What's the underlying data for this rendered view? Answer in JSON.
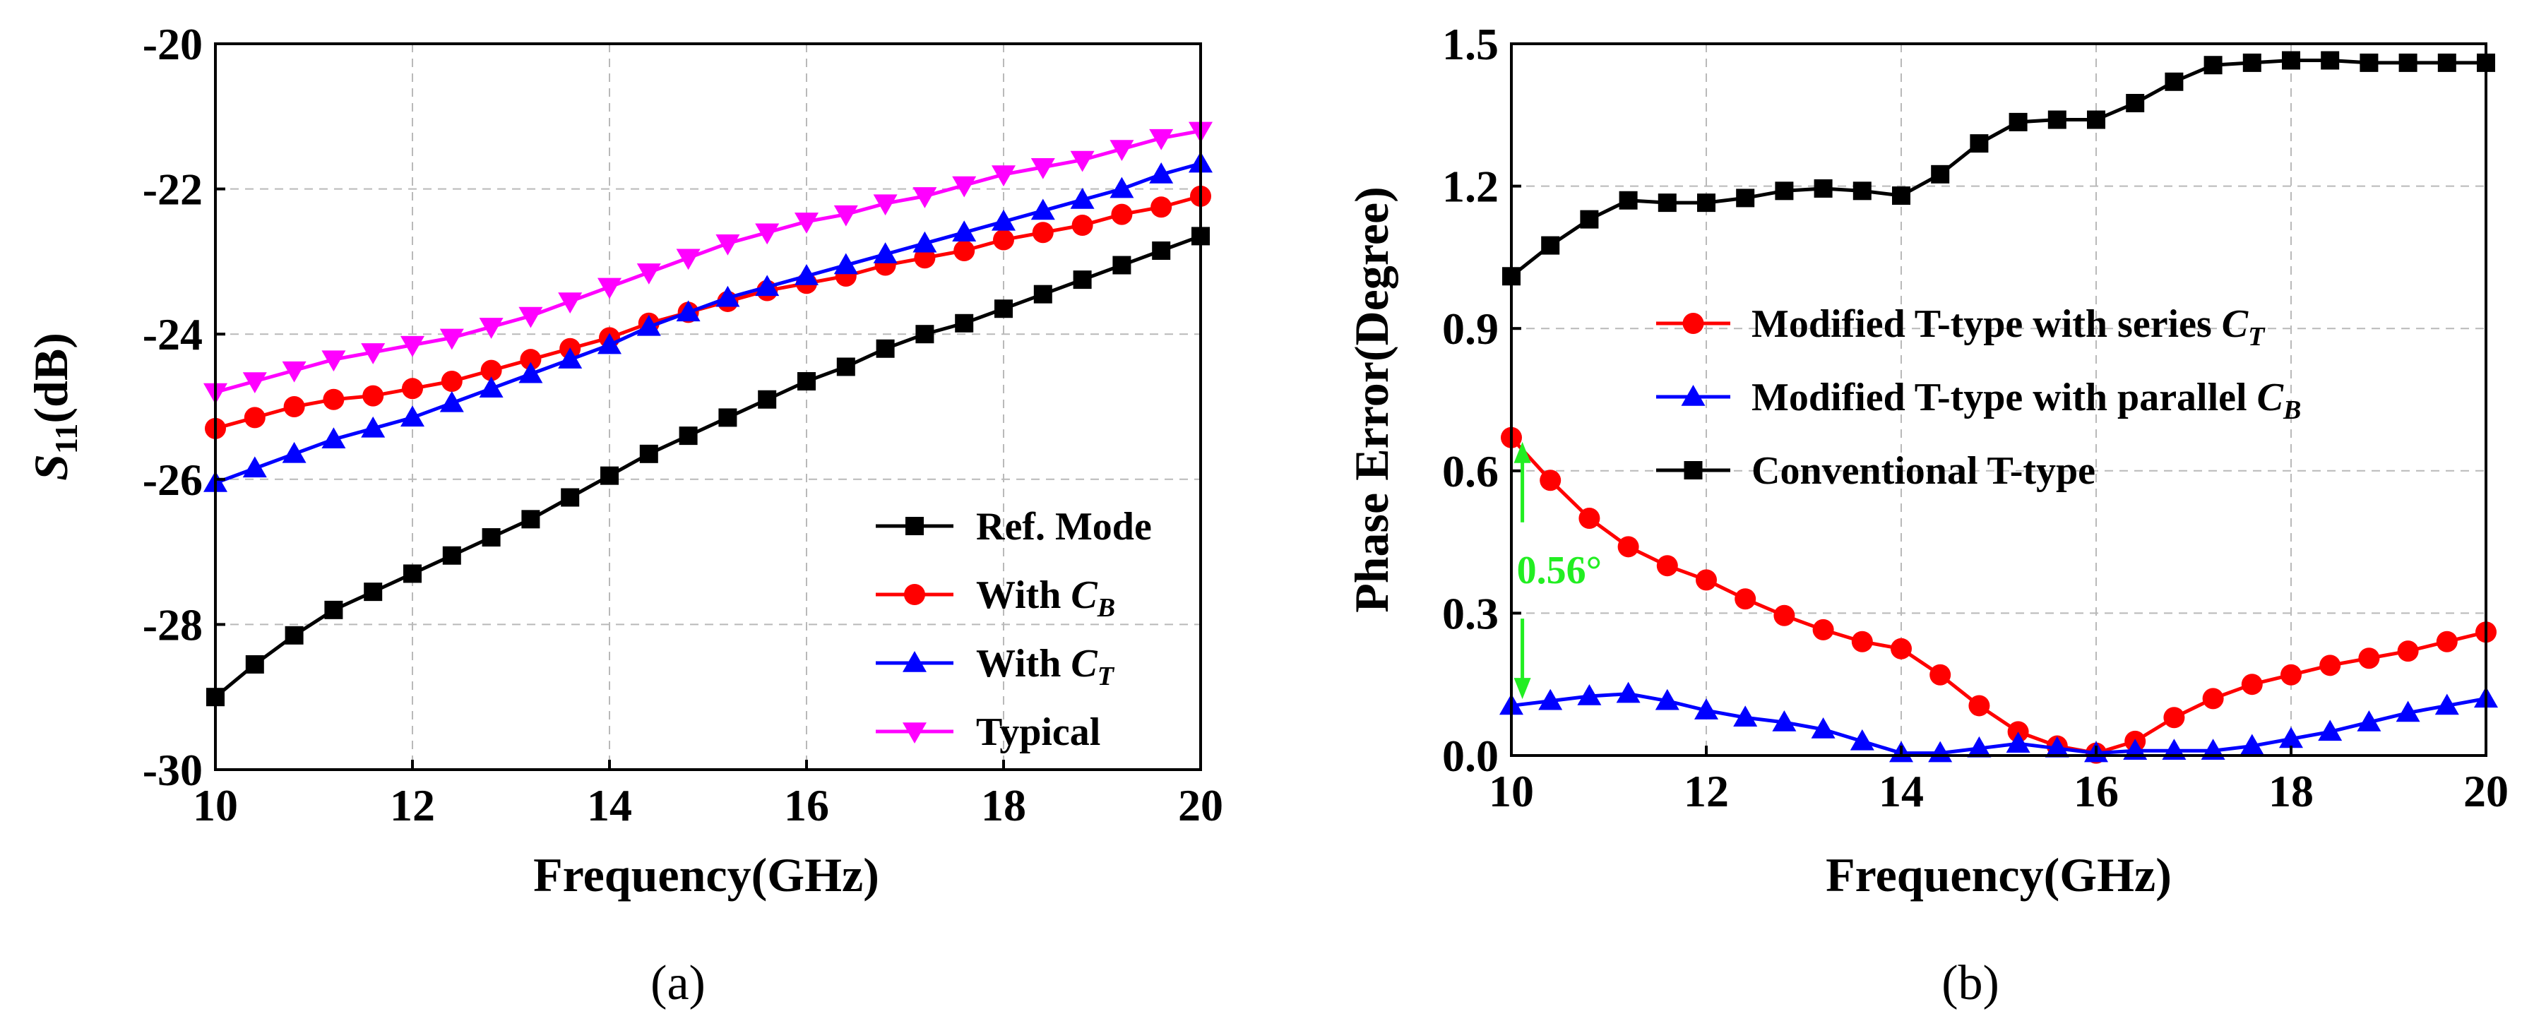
{
  "chart_data": [
    {
      "id": "a",
      "type": "line",
      "panel_label": "(a)",
      "xlabel": "Frequency(GHz)",
      "ylabel": {
        "main": "S",
        "sub": "11",
        "suffix": "(dB)"
      },
      "xlim": [
        10,
        20
      ],
      "ylim": [
        -30,
        -20
      ],
      "xticks": [
        10,
        12,
        14,
        16,
        18,
        20
      ],
      "yticks": [
        -30,
        -28,
        -26,
        -24,
        -22,
        -20
      ],
      "grid": true,
      "legend_position": "bottom-right",
      "x": [
        10,
        10.4,
        10.8,
        11.2,
        11.6,
        12,
        12.4,
        12.8,
        13.2,
        13.6,
        14,
        14.4,
        14.8,
        15.2,
        15.6,
        16,
        16.4,
        16.8,
        17.2,
        17.6,
        18,
        18.4,
        18.8,
        19.2,
        19.6,
        20
      ],
      "series": [
        {
          "name": "Ref. Mode",
          "label_main": "Ref. Mode",
          "label_sub": "",
          "color": "#000000",
          "marker": "square",
          "values": [
            -29.0,
            -28.55,
            -28.15,
            -27.8,
            -27.55,
            -27.3,
            -27.05,
            -26.8,
            -26.55,
            -26.25,
            -25.95,
            -25.65,
            -25.4,
            -25.15,
            -24.9,
            -24.65,
            -24.45,
            -24.2,
            -24.0,
            -23.85,
            -23.65,
            -23.45,
            -23.25,
            -23.05,
            -22.85,
            -22.65
          ]
        },
        {
          "name": "With C_B",
          "label_main": "With C",
          "label_sub": "B",
          "color": "#ff0000",
          "marker": "circle",
          "values": [
            -25.3,
            -25.15,
            -25.0,
            -24.9,
            -24.85,
            -24.75,
            -24.65,
            -24.5,
            -24.35,
            -24.2,
            -24.05,
            -23.85,
            -23.7,
            -23.55,
            -23.4,
            -23.3,
            -23.2,
            -23.05,
            -22.95,
            -22.85,
            -22.7,
            -22.6,
            -22.5,
            -22.35,
            -22.25,
            -22.1
          ]
        },
        {
          "name": "With C_T",
          "label_main": "With C",
          "label_sub": "T",
          "color": "#0000ff",
          "marker": "triangle-up",
          "values": [
            -26.05,
            -25.85,
            -25.65,
            -25.45,
            -25.3,
            -25.15,
            -24.95,
            -24.75,
            -24.55,
            -24.35,
            -24.15,
            -23.9,
            -23.7,
            -23.5,
            -23.35,
            -23.2,
            -23.05,
            -22.9,
            -22.75,
            -22.6,
            -22.45,
            -22.3,
            -22.15,
            -22.0,
            -21.8,
            -21.65
          ]
        },
        {
          "name": "Typical",
          "label_main": "Typical",
          "label_sub": "",
          "color": "#ff00ff",
          "marker": "triangle-down",
          "values": [
            -24.8,
            -24.65,
            -24.5,
            -24.35,
            -24.25,
            -24.15,
            -24.05,
            -23.9,
            -23.75,
            -23.55,
            -23.35,
            -23.15,
            -22.95,
            -22.75,
            -22.6,
            -22.45,
            -22.35,
            -22.2,
            -22.1,
            -21.95,
            -21.8,
            -21.7,
            -21.6,
            -21.45,
            -21.3,
            -21.2
          ]
        }
      ]
    },
    {
      "id": "b",
      "type": "line",
      "panel_label": "(b)",
      "xlabel": "Frequency(GHz)",
      "ylabel": {
        "main": "Phase Error(Degree)",
        "sub": "",
        "suffix": ""
      },
      "xlim": [
        10,
        20
      ],
      "ylim": [
        0,
        1.5
      ],
      "xticks": [
        10,
        12,
        14,
        16,
        18,
        20
      ],
      "yticks": [
        0.0,
        0.3,
        0.6,
        0.9,
        1.2,
        1.5
      ],
      "ytick_labels": [
        "0.0",
        "0.3",
        "0.6",
        "0.9",
        "1.2",
        "1.5"
      ],
      "grid": true,
      "legend_position": "center",
      "annotation": {
        "text": "0.56°",
        "x": 10.2,
        "y_from": 0.11,
        "y_to": 0.67,
        "color": "#22ee22"
      },
      "x": [
        10,
        10.4,
        10.8,
        11.2,
        11.6,
        12,
        12.4,
        12.8,
        13.2,
        13.6,
        14,
        14.4,
        14.8,
        15.2,
        15.6,
        16,
        16.4,
        16.8,
        17.2,
        17.6,
        18,
        18.4,
        18.8,
        19.2,
        19.6,
        20
      ],
      "series": [
        {
          "name": "Modified T-type with series C_T",
          "label_main": "Modified T-type with series C",
          "label_sub": "T",
          "color": "#ff0000",
          "marker": "circle",
          "values": [
            0.67,
            0.58,
            0.5,
            0.44,
            0.4,
            0.37,
            0.33,
            0.295,
            0.265,
            0.24,
            0.225,
            0.17,
            0.105,
            0.05,
            0.02,
            0.005,
            0.03,
            0.08,
            0.12,
            0.15,
            0.17,
            0.19,
            0.205,
            0.22,
            0.24,
            0.26
          ]
        },
        {
          "name": "Modified T-type with parallel C_B",
          "label_main": "Modified T-type with parallel C",
          "label_sub": "B",
          "color": "#0000ff",
          "marker": "triangle-up",
          "values": [
            0.105,
            0.115,
            0.125,
            0.13,
            0.115,
            0.095,
            0.08,
            0.07,
            0.055,
            0.03,
            0.005,
            0.005,
            0.015,
            0.025,
            0.015,
            0.005,
            0.01,
            0.01,
            0.01,
            0.02,
            0.035,
            0.05,
            0.07,
            0.09,
            0.105,
            0.12
          ]
        },
        {
          "name": "Conventional T-type",
          "label_main": "Conventional T-type",
          "label_sub": "",
          "color": "#000000",
          "marker": "square",
          "values": [
            1.01,
            1.075,
            1.13,
            1.17,
            1.165,
            1.165,
            1.175,
            1.19,
            1.195,
            1.19,
            1.18,
            1.225,
            1.29,
            1.335,
            1.34,
            1.34,
            1.375,
            1.42,
            1.455,
            1.46,
            1.465,
            1.465,
            1.46,
            1.46,
            1.46,
            1.46
          ]
        }
      ]
    }
  ]
}
